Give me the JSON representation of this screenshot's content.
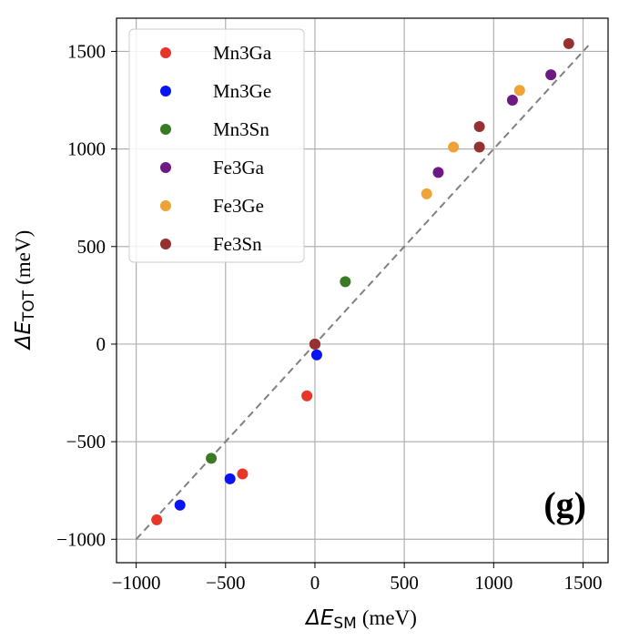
{
  "chart_data": {
    "type": "scatter",
    "panel_label": "(g)",
    "xlabel": {
      "prefix": "ΔE",
      "sub": "SM",
      "unit": "(meV)"
    },
    "ylabel": {
      "prefix": "ΔE",
      "sub": "TOT",
      "unit": "(meV)"
    },
    "xlim": [
      -1110,
      1640
    ],
    "ylim": [
      -1120,
      1670
    ],
    "xticks": [
      -1000,
      -500,
      0,
      500,
      1000,
      1500
    ],
    "yticks": [
      -1000,
      -500,
      0,
      500,
      1000,
      1500
    ],
    "xtick_labels": [
      "−1000",
      "−500",
      "0",
      "500",
      "1000",
      "1500"
    ],
    "ytick_labels": [
      "−1000",
      "−500",
      "0",
      "500",
      "1000",
      "1500"
    ],
    "grid": true,
    "legend_position": "top-left",
    "reference_line": {
      "style": "dashed",
      "color": "#808080",
      "from": [
        -1000,
        -1000
      ],
      "to": [
        1530,
        1530
      ]
    },
    "series": [
      {
        "name": "Mn3Ga",
        "color": "#e8352a",
        "points": [
          [
            -885,
            -900
          ],
          [
            -405,
            -665
          ],
          [
            -45,
            -265
          ],
          [
            0,
            0
          ]
        ]
      },
      {
        "name": "Mn3Ge",
        "color": "#0a14f0",
        "points": [
          [
            -755,
            -825
          ],
          [
            -475,
            -690
          ],
          [
            10,
            -55
          ],
          [
            0,
            0
          ]
        ]
      },
      {
        "name": "Mn3Sn",
        "color": "#3a7a24",
        "points": [
          [
            -580,
            -585
          ],
          [
            170,
            320
          ],
          [
            0,
            0
          ]
        ]
      },
      {
        "name": "Fe3Ga",
        "color": "#6e1882",
        "points": [
          [
            690,
            880
          ],
          [
            1105,
            1250
          ],
          [
            1320,
            1380
          ],
          [
            0,
            0
          ]
        ]
      },
      {
        "name": "Fe3Ge",
        "color": "#f0a234",
        "points": [
          [
            625,
            770
          ],
          [
            775,
            1010
          ],
          [
            1145,
            1300
          ],
          [
            0,
            0
          ]
        ]
      },
      {
        "name": "Fe3Sn",
        "color": "#953131",
        "points": [
          [
            920,
            1010
          ],
          [
            920,
            1115
          ],
          [
            1420,
            1540
          ],
          [
            0,
            0
          ]
        ]
      }
    ]
  }
}
